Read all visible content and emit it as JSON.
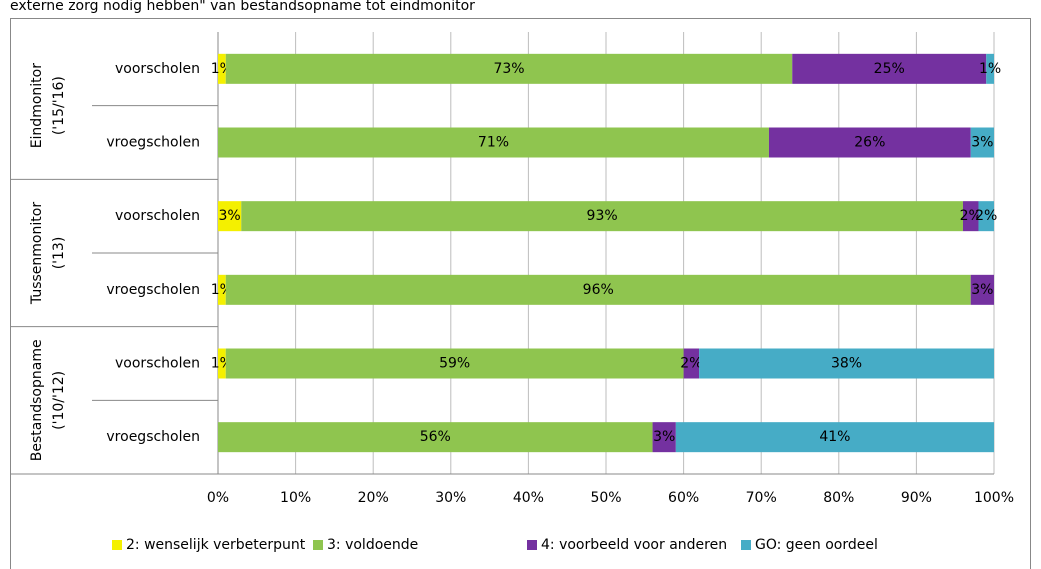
{
  "chart_data": {
    "type": "stacked_bar_horizontal",
    "title": "externe zorg nodig hebben\" van bestandsopname tot eindmonitor",
    "groups": [
      [
        "Eindmonitor",
        "('15/'16)"
      ],
      [
        "Tussenmonitor",
        "('13)"
      ],
      [
        "Bestandsopname",
        "('10/'12)"
      ]
    ],
    "categories": [
      "voorscholen",
      "vroegscholen",
      "voorscholen",
      "vroegscholen",
      "voorscholen",
      "vroegscholen"
    ],
    "series": [
      {
        "name": "2: wenselijk verbeterpunt",
        "color": "#f4f000",
        "values": [
          1,
          null,
          3,
          1,
          1,
          null
        ],
        "value_labels": [
          "1%",
          null,
          "3%",
          "1%",
          "1%",
          null
        ]
      },
      {
        "name": "3: voldoende",
        "color": "#8fc54f",
        "values": [
          73,
          71,
          93,
          96,
          59,
          56
        ],
        "value_labels": [
          "73%",
          "71%",
          "93%",
          "96%",
          "59%",
          "56%"
        ]
      },
      {
        "name": "4: voorbeeld voor anderen",
        "color": "#7431a0",
        "values": [
          25,
          26,
          2,
          3,
          2,
          3
        ],
        "value_labels": [
          "25%",
          "26%",
          "2%",
          "3%",
          "2%",
          "3%"
        ]
      },
      {
        "name": "GO: geen oordeel",
        "color": "#46acc6",
        "values": [
          1,
          3,
          2,
          null,
          38,
          41
        ],
        "value_labels": [
          "1%",
          "3%",
          "2%",
          null,
          "38%",
          "41%"
        ]
      }
    ],
    "xlim": [
      0,
      100
    ],
    "xticks": [
      {
        "value": 0,
        "label": "0%"
      },
      {
        "value": 10,
        "label": "10%"
      },
      {
        "value": 20,
        "label": "20%"
      },
      {
        "value": 30,
        "label": "30%"
      },
      {
        "value": 40,
        "label": "40%"
      },
      {
        "value": 50,
        "label": "50%"
      },
      {
        "value": 60,
        "label": "60%"
      },
      {
        "value": 70,
        "label": "70%"
      },
      {
        "value": 80,
        "label": "80%"
      },
      {
        "value": 90,
        "label": "90%"
      },
      {
        "value": 100,
        "label": "100%"
      }
    ],
    "grid": true,
    "legend": "bottom"
  }
}
